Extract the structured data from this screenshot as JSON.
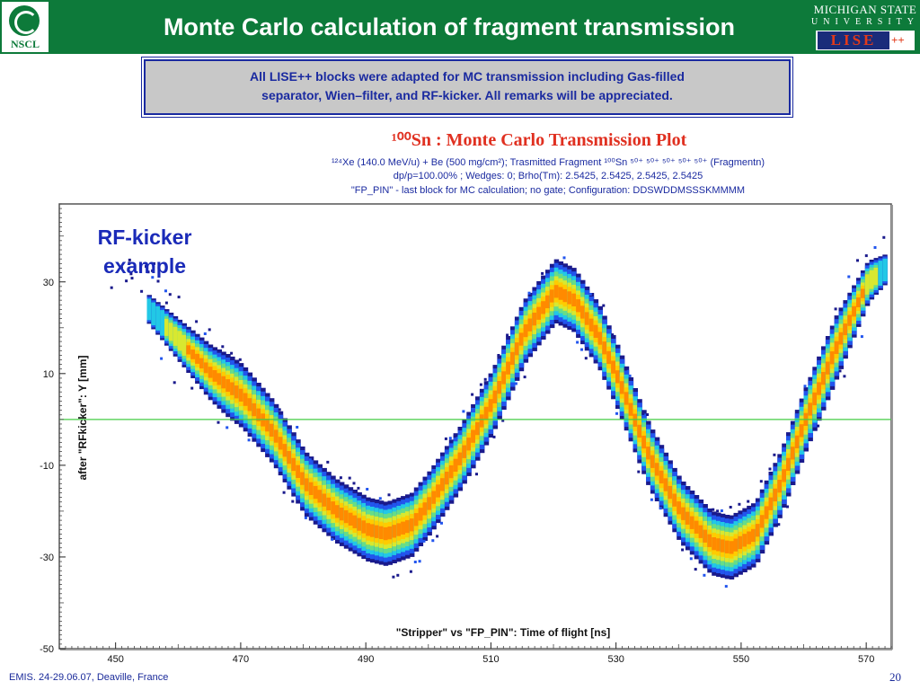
{
  "slide": {
    "title": "Monte Carlo calculation of fragment transmission",
    "nscl_logo_text": "NSCL",
    "msu_logo_line1": "MICHIGAN STATE",
    "msu_logo_line2": "UNIVERSITY",
    "lise_logo_text": "LISE",
    "lise_logo_plus": "++",
    "notice_line1": "All LISE++ blocks were adapted for MC transmission including Gas-filled",
    "notice_line2": "separator, Wien–filter, and RF-kicker. All remarks will be appreciated.",
    "kicker_line1": "RF-kicker",
    "kicker_line2": "example",
    "footer": "EMIS.  24-29.06.07,  Deaville, France",
    "page_number": "20",
    "header_color": "#0d7a3a",
    "notice_border_color": "#1a2aa0"
  },
  "plot_header": {
    "title": "¹⁰⁰Sn : Monte Carlo Transmission Plot",
    "subtitle1": "¹²⁴Xe (140.0 MeV/u) + Be (500 mg/cm²);  Trasmitted Fragment ¹⁰⁰Sn ⁵⁰⁺ ⁵⁰⁺ ⁵⁰⁺ ⁵⁰⁺ ⁵⁰⁺ (Fragmentn)",
    "subtitle2": "dp/p=100.00% ; Wedges: 0; Brho(Tm): 2.5425, 2.5425, 2.5425, 2.5425",
    "subtitle3": "\"FP_PIN\" - last block for MC calculation;  no gate;  Configuration: DDSWDDMSSSKMMMM"
  },
  "chart_data": {
    "type": "heatmap",
    "xlabel": "\"Stripper\" vs \"FP_PIN\": Time of flight [ns]",
    "ylabel": "after \"RFkicker\": Y [mm]",
    "xlim": [
      441,
      574
    ],
    "ylim": [
      -50,
      47
    ],
    "x_ticks": [
      450,
      470,
      490,
      510,
      530,
      550,
      570
    ],
    "y_ticks": [
      30,
      10,
      -10,
      -30,
      -50
    ],
    "reference_line_y": 0,
    "reference_line_color": "#44cc44",
    "grid": false,
    "colormap": [
      "#1a1a8c",
      "#2255ee",
      "#22c8e6",
      "#66dd88",
      "#d8e830",
      "#ffcc00",
      "#ff8a00"
    ],
    "ridge_points": [
      {
        "x": 455,
        "y": 24
      },
      {
        "x": 460,
        "y": 17
      },
      {
        "x": 465,
        "y": 10
      },
      {
        "x": 470,
        "y": 5
      },
      {
        "x": 475,
        "y": -3
      },
      {
        "x": 480,
        "y": -14
      },
      {
        "x": 485,
        "y": -20
      },
      {
        "x": 490,
        "y": -24
      },
      {
        "x": 493,
        "y": -25
      },
      {
        "x": 497,
        "y": -23
      },
      {
        "x": 500,
        "y": -18
      },
      {
        "x": 505,
        "y": -8
      },
      {
        "x": 510,
        "y": 4
      },
      {
        "x": 515,
        "y": 19
      },
      {
        "x": 520,
        "y": 28
      },
      {
        "x": 523,
        "y": 26
      },
      {
        "x": 527,
        "y": 18
      },
      {
        "x": 530,
        "y": 9
      },
      {
        "x": 535,
        "y": -8
      },
      {
        "x": 540,
        "y": -20
      },
      {
        "x": 545,
        "y": -27
      },
      {
        "x": 548,
        "y": -28
      },
      {
        "x": 552,
        "y": -25
      },
      {
        "x": 556,
        "y": -14
      },
      {
        "x": 560,
        "y": 0
      },
      {
        "x": 565,
        "y": 16
      },
      {
        "x": 570,
        "y": 30
      },
      {
        "x": 573,
        "y": 33
      }
    ]
  }
}
